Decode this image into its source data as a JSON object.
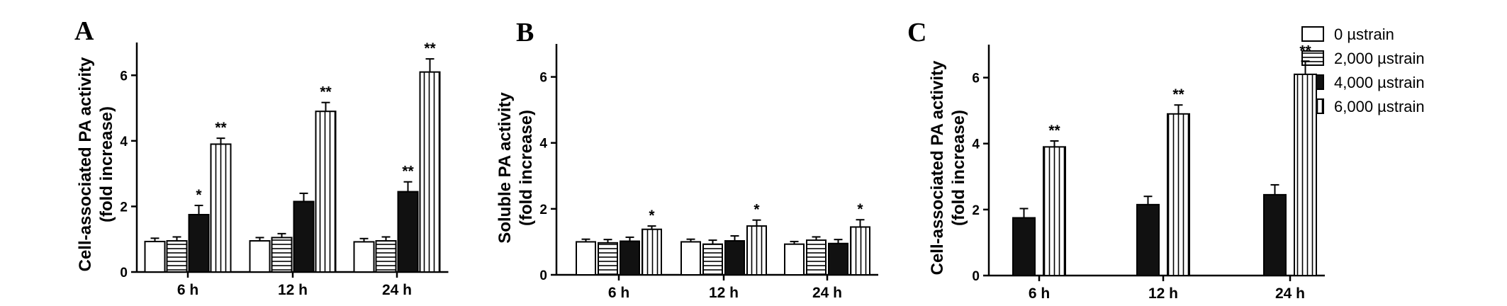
{
  "legend": [
    {
      "label": "0 µstrain",
      "pattern": "open"
    },
    {
      "label": "2,000 µstrain",
      "pattern": "horizontal-stripes"
    },
    {
      "label": "4,000 µstrain",
      "pattern": "solid-black"
    },
    {
      "label": "6,000 µstrain",
      "pattern": "vertical-stripes"
    }
  ],
  "chart_data": [
    {
      "type": "bar",
      "panel": "A",
      "ylabel_lines": [
        "Cell-associated PA activity",
        "(fold increase)"
      ],
      "categories": [
        "6 h",
        "12 h",
        "24 h"
      ],
      "ylim": [
        0,
        7
      ],
      "yticks": [
        0,
        2,
        4,
        6
      ],
      "series": [
        {
          "name": "0 µstrain",
          "values": [
            0.93,
            0.95,
            0.92
          ],
          "errors": [
            0.1,
            0.1,
            0.1
          ],
          "stars": [
            "",
            "",
            ""
          ]
        },
        {
          "name": "2,000 µstrain",
          "values": [
            0.95,
            1.05,
            0.95
          ],
          "errors": [
            0.12,
            0.12,
            0.12
          ],
          "stars": [
            "",
            "",
            ""
          ]
        },
        {
          "name": "4,000 µstrain",
          "values": [
            1.75,
            2.15,
            2.45
          ],
          "errors": [
            0.28,
            0.25,
            0.3
          ],
          "stars": [
            "*",
            "",
            "**"
          ]
        },
        {
          "name": "6,000 µstrain",
          "values": [
            3.9,
            4.9,
            6.1
          ],
          "errors": [
            0.18,
            0.27,
            0.4
          ],
          "stars": [
            "**",
            "**",
            "**"
          ]
        }
      ]
    },
    {
      "type": "bar",
      "panel": "B",
      "ylabel_lines": [
        "Soluble  PA activity",
        "(fold increase)"
      ],
      "categories": [
        "6 h",
        "12 h",
        "24 h"
      ],
      "ylim": [
        0,
        7
      ],
      "yticks": [
        0,
        2,
        4,
        6
      ],
      "series": [
        {
          "name": "0 µstrain",
          "values": [
            1.0,
            1.0,
            0.93
          ],
          "errors": [
            0.08,
            0.08,
            0.08
          ],
          "stars": [
            "",
            "",
            ""
          ]
        },
        {
          "name": "2,000 µstrain",
          "values": [
            0.97,
            0.93,
            1.05
          ],
          "errors": [
            0.1,
            0.12,
            0.1
          ],
          "stars": [
            "",
            "",
            ""
          ]
        },
        {
          "name": "4,000 µstrain",
          "values": [
            1.02,
            1.03,
            0.95
          ],
          "errors": [
            0.12,
            0.15,
            0.12
          ],
          "stars": [
            "",
            "",
            ""
          ]
        },
        {
          "name": "6,000 µstrain",
          "values": [
            1.38,
            1.48,
            1.45
          ],
          "errors": [
            0.1,
            0.18,
            0.22
          ],
          "stars": [
            "*",
            "*",
            "*"
          ]
        }
      ]
    },
    {
      "type": "bar",
      "panel": "C",
      "ylabel_lines": [
        "Cell-associated PA activity",
        "(fold increase)"
      ],
      "categories": [
        "6 h",
        "12 h",
        "24 h"
      ],
      "ylim": [
        0,
        7
      ],
      "yticks": [
        0,
        2,
        4,
        6
      ],
      "series": [
        {
          "name": "4,000 µstrain",
          "values": [
            1.75,
            2.15,
            2.45
          ],
          "errors": [
            0.28,
            0.25,
            0.3
          ],
          "stars": [
            "",
            "",
            ""
          ]
        },
        {
          "name": "6,000 µstrain",
          "values": [
            3.9,
            4.9,
            6.1
          ],
          "errors": [
            0.18,
            0.27,
            0.4
          ],
          "stars": [
            "**",
            "**",
            "**"
          ]
        }
      ]
    }
  ]
}
